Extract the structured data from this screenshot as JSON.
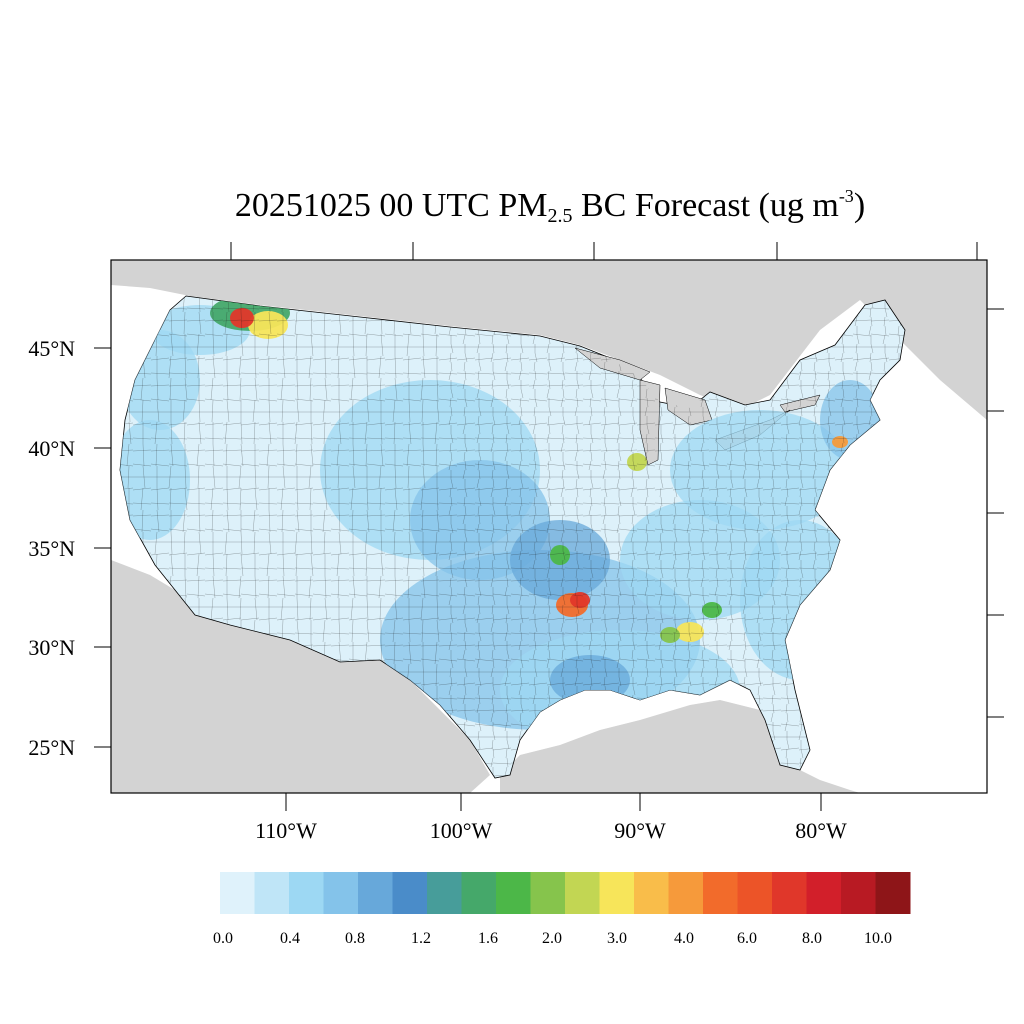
{
  "title": {
    "date": "20251025",
    "hour": "00 UTC",
    "pm": "PM",
    "pm_sub": "2.5",
    "rest": " BC Forecast (ug m",
    "exp": "-3",
    "close": ")"
  },
  "axes": {
    "lat_labels": [
      "45°N",
      "40°N",
      "35°N",
      "30°N",
      "25°N"
    ],
    "lon_labels": [
      "110°W",
      "100°W",
      "90°W",
      "80°W"
    ]
  },
  "colorbar": {
    "colors": [
      "#dff2fb",
      "#bfe5f7",
      "#9dd8f3",
      "#84c3ea",
      "#67a8da",
      "#4a8cc9",
      "#479d9a",
      "#45a86a",
      "#4cb748",
      "#86c44c",
      "#c2d653",
      "#f7e55a",
      "#f9bd4a",
      "#f69a3b",
      "#f26b2b",
      "#ec5428",
      "#e0372a",
      "#d21f2a",
      "#b81a23",
      "#8e1518"
    ],
    "labels": [
      "0.0",
      "0.4",
      "0.8",
      "1.2",
      "1.6",
      "2.0",
      "3.0",
      "4.0",
      "6.0",
      "8.0",
      "10.0"
    ]
  },
  "map": {
    "land_color": "#ddf1fa",
    "background_land_color": "#d3d3d3",
    "water_color": "#ffffff",
    "hotspots": [
      {
        "region": "NW Montana",
        "level": "high"
      },
      {
        "region": "N Louisiana / E Texas",
        "level": "high"
      },
      {
        "region": "Mississippi / Alabama",
        "level": "medium"
      },
      {
        "region": "NW Illinois",
        "level": "medium"
      },
      {
        "region": "New Jersey",
        "level": "medium"
      }
    ]
  }
}
